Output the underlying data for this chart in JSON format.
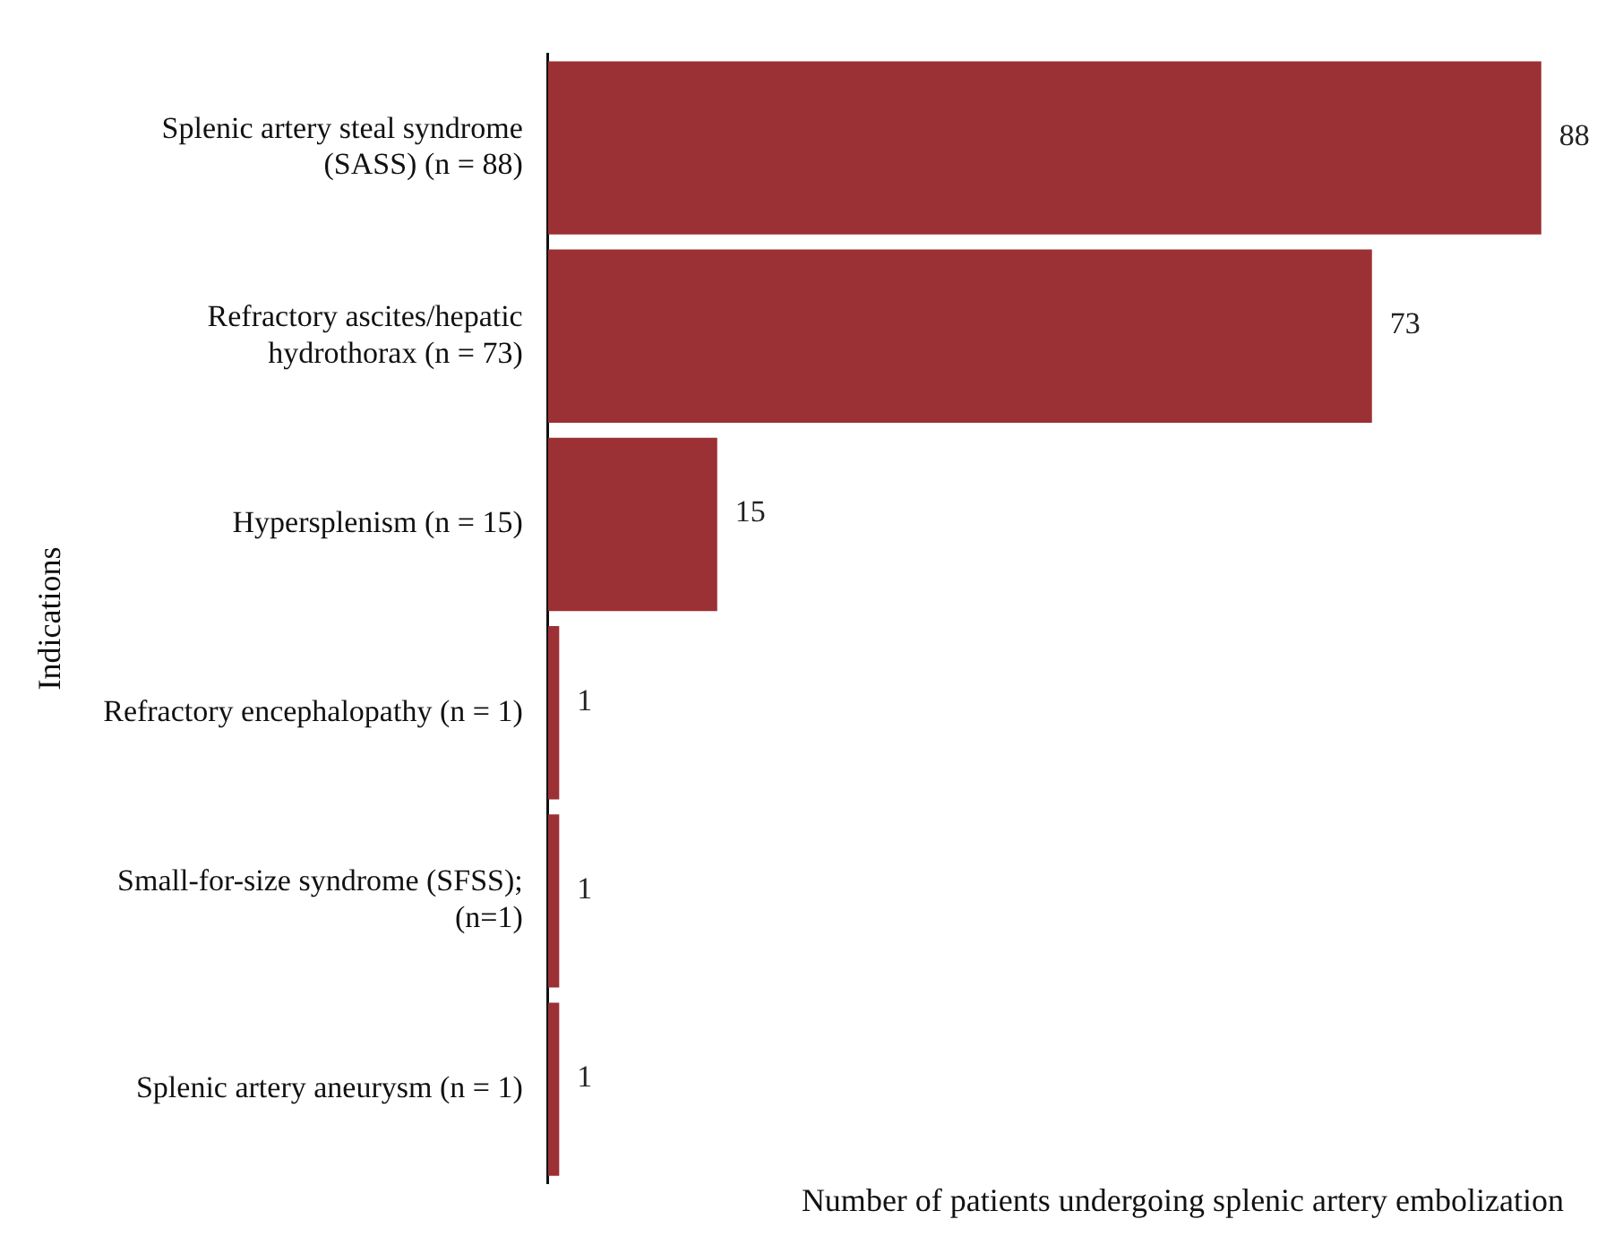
{
  "chart_data": {
    "type": "bar",
    "orientation": "horizontal",
    "ylabel": "Indications",
    "xlabel": "Number of patients undergoing splenic artery embolization",
    "categories": [
      "Splenic artery steal syndrome (SASS) (n = 88)",
      "Refractory ascites/hepatic hydrothorax (n = 73)",
      "Hypersplenism (n = 15)",
      "Refractory encephalopathy (n = 1)",
      "Small-for-size syndrome (SFSS); (n=1)",
      "Splenic artery aneurysm (n = 1)"
    ],
    "values": [
      88,
      73,
      15,
      1,
      1,
      1
    ],
    "color": "#9b3035",
    "data_labels": true,
    "tick_labels": "y",
    "grid": false,
    "legend": false
  }
}
